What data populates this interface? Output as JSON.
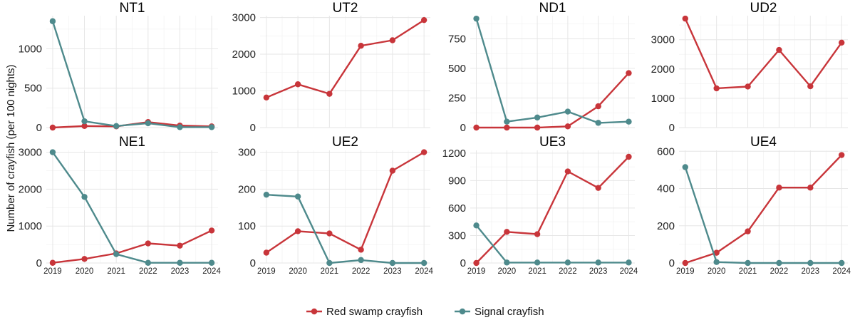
{
  "chart_data": {
    "type": "line",
    "ylabel": "Number of crayfish (per 100 nights)",
    "x": [
      2019,
      2020,
      2021,
      2022,
      2023,
      2024
    ],
    "x_tick_labels": [
      "2019",
      "2020",
      "2021",
      "2022",
      "2023",
      "2024"
    ],
    "series_names": [
      "Red swamp crayfish",
      "Signal crayfish"
    ],
    "colors": {
      "Red swamp crayfish": "#c8353a",
      "Signal crayfish": "#4e8a8c"
    },
    "legend": {
      "position": "bottom",
      "items": [
        "Red swamp crayfish",
        "Signal crayfish"
      ]
    },
    "panels": [
      {
        "title": "NT1",
        "ylim": [
          0,
          1420
        ],
        "yticks": [
          0,
          500,
          1000
        ],
        "series": [
          {
            "name": "Red swamp crayfish",
            "values": [
              0,
              20,
              15,
              70,
              25,
              15
            ]
          },
          {
            "name": "Signal crayfish",
            "values": [
              1350,
              80,
              20,
              55,
              5,
              5
            ]
          }
        ]
      },
      {
        "title": "UT2",
        "ylim": [
          0,
          3050
        ],
        "yticks": [
          0,
          1000,
          2000,
          3000
        ],
        "series": [
          {
            "name": "Red swamp crayfish",
            "values": [
              820,
              1180,
              920,
              2230,
              2380,
              2930
            ]
          }
        ]
      },
      {
        "title": "ND1",
        "ylim": [
          0,
          945
        ],
        "yticks": [
          0,
          250,
          500,
          750
        ],
        "series": [
          {
            "name": "Red swamp crayfish",
            "values": [
              0,
              0,
              0,
              10,
              180,
              460
            ]
          },
          {
            "name": "Signal crayfish",
            "values": [
              920,
              50,
              85,
              135,
              40,
              50
            ]
          }
        ]
      },
      {
        "title": "UD2",
        "ylim": [
          0,
          3820
        ],
        "yticks": [
          0,
          1000,
          2000,
          3000
        ],
        "series": [
          {
            "name": "Red swamp crayfish",
            "values": [
              3720,
              1340,
              1400,
              2650,
              1410,
              2900
            ]
          }
        ]
      },
      {
        "title": "NE1",
        "ylim": [
          0,
          3050
        ],
        "yticks": [
          0,
          1000,
          2000,
          3000
        ],
        "series": [
          {
            "name": "Red swamp crayfish",
            "values": [
              5,
              110,
              260,
              530,
              470,
              880
            ]
          },
          {
            "name": "Signal crayfish",
            "values": [
              3000,
              1790,
              240,
              5,
              5,
              5
            ]
          }
        ]
      },
      {
        "title": "UE2",
        "ylim": [
          0,
          305
        ],
        "yticks": [
          0,
          100,
          200,
          300
        ],
        "series": [
          {
            "name": "Red swamp crayfish",
            "values": [
              28,
              86,
              80,
              36,
              250,
              300
            ]
          },
          {
            "name": "Signal crayfish",
            "values": [
              185,
              180,
              0,
              8,
              0,
              0
            ]
          }
        ]
      },
      {
        "title": "UE3",
        "ylim": [
          0,
          1230
        ],
        "yticks": [
          0,
          300,
          600,
          900,
          1200
        ],
        "series": [
          {
            "name": "Red swamp crayfish",
            "values": [
              0,
              340,
              315,
              1000,
              820,
              1160
            ]
          },
          {
            "name": "Signal crayfish",
            "values": [
              410,
              5,
              5,
              5,
              5,
              5
            ]
          }
        ]
      },
      {
        "title": "UE4",
        "ylim": [
          0,
          605
        ],
        "yticks": [
          0,
          200,
          400,
          600
        ],
        "series": [
          {
            "name": "Red swamp crayfish",
            "values": [
              0,
              55,
              170,
              405,
              405,
              580
            ]
          },
          {
            "name": "Signal crayfish",
            "values": [
              515,
              5,
              0,
              0,
              0,
              0
            ]
          }
        ]
      }
    ]
  }
}
